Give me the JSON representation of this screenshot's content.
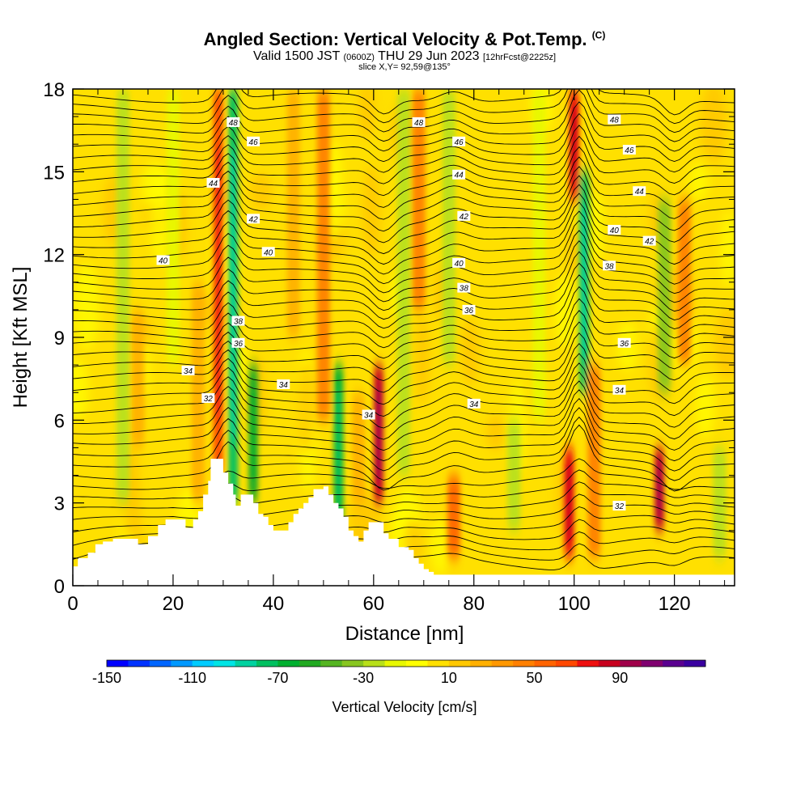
{
  "title": {
    "main": "Angled Section: Vertical Velocity & Pot.Temp.",
    "copyright": "(C)",
    "valid_prefix": "Valid 1500 JST",
    "utc": "(0600Z)",
    "valid_suffix": "THU 29 Jun 2023",
    "forecast": "[12hrFcst@2225z]",
    "slice": "slice X,Y= 92,59@135°"
  },
  "chart_data": {
    "type": "heatmap",
    "xlabel": "Distance [nm]",
    "ylabel": "Height [Kft MSL]",
    "xlim": [
      0,
      132
    ],
    "ylim": [
      0,
      18
    ],
    "x_ticks": [
      0,
      20,
      40,
      60,
      80,
      100,
      120
    ],
    "y_ticks": [
      0,
      3,
      6,
      9,
      12,
      15,
      18
    ],
    "colorbar": {
      "label": "Vertical Velocity [cm/s]",
      "min": -150,
      "max": 130,
      "step": 10,
      "tick_labels": [
        -150,
        -110,
        -70,
        -30,
        10,
        50,
        90
      ],
      "colors": [
        "#0000ff",
        "#0033ff",
        "#0066ff",
        "#0099ff",
        "#00ccff",
        "#00e5e5",
        "#00d2a0",
        "#00c060",
        "#00b030",
        "#22aa22",
        "#55b522",
        "#88c620",
        "#b8e01a",
        "#e8f800",
        "#ffff00",
        "#ffe000",
        "#ffc800",
        "#ffb000",
        "#ff9800",
        "#ff8000",
        "#ff6400",
        "#ff4800",
        "#ee1010",
        "#c8001e",
        "#a0004a",
        "#800070",
        "#5a0090",
        "#3a00a0"
      ]
    },
    "vertical_velocity_features": [
      {
        "x": 10,
        "top": 18,
        "bottom": 3,
        "w": -25
      },
      {
        "x": 13,
        "top": 10,
        "bottom": 5,
        "w": 25
      },
      {
        "x": 20,
        "top": 18,
        "bottom": 8,
        "w": -20
      },
      {
        "x": 25,
        "top": 11,
        "bottom": 3,
        "w": 25
      },
      {
        "x": 29,
        "top": 18,
        "bottom": 4,
        "w": 60
      },
      {
        "x": 32,
        "top": 18,
        "bottom": 3,
        "w": -75
      },
      {
        "x": 36,
        "top": 8,
        "bottom": 3,
        "w": -60
      },
      {
        "x": 44,
        "top": 18,
        "bottom": 9,
        "w": 25
      },
      {
        "x": 50,
        "top": 18,
        "bottom": 6,
        "w": 45
      },
      {
        "x": 53,
        "top": 8,
        "bottom": 2,
        "w": -70
      },
      {
        "x": 57,
        "top": 7,
        "bottom": 3,
        "w": 25
      },
      {
        "x": 61,
        "top": 8,
        "bottom": 3,
        "w": 80
      },
      {
        "x": 66,
        "top": 18,
        "bottom": 4,
        "w": -30
      },
      {
        "x": 69,
        "top": 18,
        "bottom": 10,
        "w": 40
      },
      {
        "x": 75,
        "top": 18,
        "bottom": 8,
        "w": -30
      },
      {
        "x": 76,
        "top": 4,
        "bottom": 1,
        "w": 50
      },
      {
        "x": 88,
        "top": 6,
        "bottom": 2,
        "w": -30
      },
      {
        "x": 93,
        "top": 18,
        "bottom": 6,
        "w": -20
      },
      {
        "x": 99,
        "top": 5,
        "bottom": 1,
        "w": 70
      },
      {
        "x": 100,
        "top": 18,
        "bottom": 14,
        "w": 70
      },
      {
        "x": 102,
        "top": 15,
        "bottom": 7,
        "w": -80
      },
      {
        "x": 104,
        "top": 8,
        "bottom": 1,
        "w": 40
      },
      {
        "x": 117,
        "top": 5,
        "bottom": 2,
        "w": 80
      },
      {
        "x": 122,
        "top": 14,
        "bottom": 8,
        "w": 45
      },
      {
        "x": 118,
        "top": 14,
        "bottom": 7,
        "w": -40
      },
      {
        "x": 129,
        "top": 5,
        "bottom": 1,
        "w": -30
      }
    ],
    "isentrope_labels": [
      {
        "value": 48,
        "x": 32,
        "y": 16.8
      },
      {
        "value": 48,
        "x": 69,
        "y": 16.8
      },
      {
        "value": 48,
        "x": 108,
        "y": 16.9
      },
      {
        "value": 46,
        "x": 36,
        "y": 16.1
      },
      {
        "value": 46,
        "x": 77,
        "y": 16.1
      },
      {
        "value": 46,
        "x": 111,
        "y": 15.8
      },
      {
        "value": 44,
        "x": 28,
        "y": 14.6
      },
      {
        "value": 44,
        "x": 77,
        "y": 14.9
      },
      {
        "value": 44,
        "x": 113,
        "y": 14.3
      },
      {
        "value": 42,
        "x": 36,
        "y": 13.3
      },
      {
        "value": 42,
        "x": 78,
        "y": 13.4
      },
      {
        "value": 42,
        "x": 115,
        "y": 12.5
      },
      {
        "value": 40,
        "x": 18,
        "y": 11.8
      },
      {
        "value": 40,
        "x": 39,
        "y": 12.1
      },
      {
        "value": 40,
        "x": 77,
        "y": 11.7
      },
      {
        "value": 40,
        "x": 108,
        "y": 12.9
      },
      {
        "value": 38,
        "x": 33,
        "y": 9.6
      },
      {
        "value": 38,
        "x": 78,
        "y": 10.8
      },
      {
        "value": 38,
        "x": 107,
        "y": 11.6
      },
      {
        "value": 36,
        "x": 33,
        "y": 8.8
      },
      {
        "value": 36,
        "x": 79,
        "y": 10.0
      },
      {
        "value": 36,
        "x": 110,
        "y": 8.8
      },
      {
        "value": 34,
        "x": 23,
        "y": 7.8
      },
      {
        "value": 34,
        "x": 42,
        "y": 7.3
      },
      {
        "value": 34,
        "x": 59,
        "y": 6.2
      },
      {
        "value": 34,
        "x": 80,
        "y": 6.6
      },
      {
        "value": 34,
        "x": 109,
        "y": 7.1
      },
      {
        "value": 32,
        "x": 27,
        "y": 6.8
      },
      {
        "value": 32,
        "x": 109,
        "y": 2.9
      }
    ],
    "terrain_kft": [
      [
        0,
        0.7
      ],
      [
        1,
        1.0
      ],
      [
        3,
        1.2
      ],
      [
        4.5,
        1.5
      ],
      [
        6,
        1.6
      ],
      [
        8,
        1.7
      ],
      [
        11,
        1.7
      ],
      [
        13,
        1.5
      ],
      [
        15,
        1.8
      ],
      [
        17,
        2.2
      ],
      [
        18.5,
        2.4
      ],
      [
        21,
        2.4
      ],
      [
        22.5,
        2.1
      ],
      [
        24,
        2.4
      ],
      [
        25,
        2.7
      ],
      [
        26,
        3.3
      ],
      [
        27,
        3.8
      ],
      [
        27.5,
        4.6
      ],
      [
        29.5,
        4.6
      ],
      [
        30,
        4.1
      ],
      [
        31,
        3.7
      ],
      [
        32,
        3.3
      ],
      [
        32.5,
        2.9
      ],
      [
        33.5,
        3.3
      ],
      [
        35,
        3.3
      ],
      [
        36,
        3.0
      ],
      [
        37,
        2.6
      ],
      [
        38,
        2.5
      ],
      [
        39,
        2.2
      ],
      [
        40,
        2.0
      ],
      [
        42,
        2.0
      ],
      [
        43,
        2.3
      ],
      [
        44,
        2.6
      ],
      [
        45,
        2.8
      ],
      [
        46,
        3.0
      ],
      [
        47,
        3.2
      ],
      [
        48,
        3.5
      ],
      [
        50,
        3.6
      ],
      [
        51,
        3.3
      ],
      [
        52,
        3.0
      ],
      [
        53,
        2.8
      ],
      [
        54,
        2.5
      ],
      [
        55,
        2.0
      ],
      [
        56,
        1.8
      ],
      [
        57,
        1.6
      ],
      [
        58,
        2.0
      ],
      [
        59,
        2.3
      ],
      [
        61,
        2.3
      ],
      [
        62,
        1.9
      ],
      [
        63,
        1.7
      ],
      [
        65,
        1.4
      ],
      [
        67,
        1.3
      ],
      [
        68,
        1.0
      ],
      [
        69,
        0.8
      ],
      [
        70,
        0.6
      ],
      [
        71,
        0.5
      ],
      [
        72,
        0.4
      ],
      [
        74,
        0.4
      ],
      [
        132,
        0.4
      ]
    ]
  }
}
